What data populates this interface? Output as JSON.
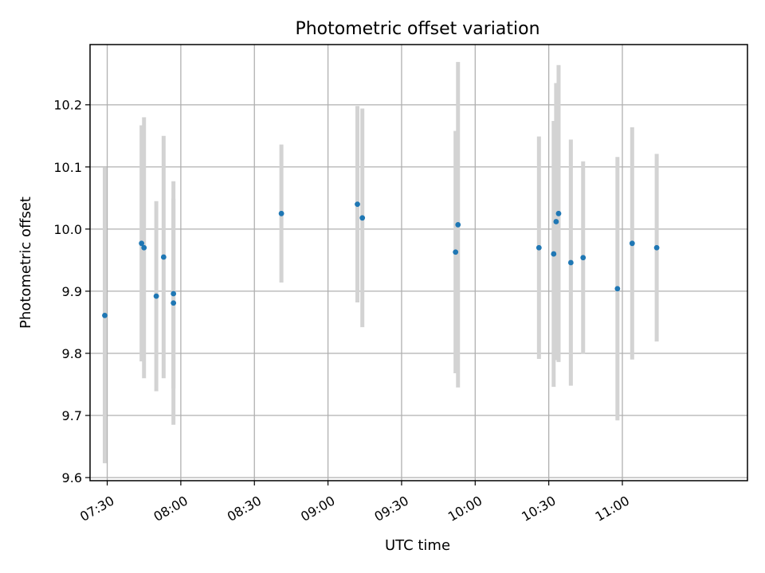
{
  "chart_data": {
    "type": "scatter",
    "title": "Photometric offset variation",
    "xlabel": "UTC time",
    "ylabel": "Photometric offset",
    "grid": true,
    "legend": "none",
    "x_is_time": true,
    "xlim": [
      "07:23",
      "11:51"
    ],
    "ylim": [
      9.595,
      10.297
    ],
    "x_ticks": [
      "07:30",
      "08:00",
      "08:30",
      "09:00",
      "09:30",
      "10:00",
      "10:30",
      "11:00"
    ],
    "y_ticks": [
      9.6,
      9.7,
      9.8,
      9.9,
      10.0,
      10.1,
      10.2
    ],
    "colors": {
      "marker": "#1f77b4",
      "errorbar": "#d3d3d3",
      "grid": "#b0b0b0"
    },
    "series": [
      {
        "points": [
          {
            "x": "07:29",
            "y": 9.861,
            "err": 0.238
          },
          {
            "x": "07:44",
            "y": 9.977,
            "err": 0.19
          },
          {
            "x": "07:45",
            "y": 9.97,
            "err": 0.21
          },
          {
            "x": "07:50",
            "y": 9.892,
            "err": 0.153
          },
          {
            "x": "07:53",
            "y": 9.955,
            "err": 0.195
          },
          {
            "x": "07:57",
            "y": 9.881,
            "err": 0.196
          },
          {
            "x": "07:57",
            "y": 9.896,
            "err": 0.153
          },
          {
            "x": "08:41",
            "y": 10.025,
            "err": 0.111
          },
          {
            "x": "09:12",
            "y": 10.04,
            "err": 0.158
          },
          {
            "x": "09:14",
            "y": 10.018,
            "err": 0.176
          },
          {
            "x": "09:52",
            "y": 9.963,
            "err": 0.195
          },
          {
            "x": "09:53",
            "y": 10.007,
            "err": 0.262
          },
          {
            "x": "10:26",
            "y": 9.97,
            "err": 0.179
          },
          {
            "x": "10:32",
            "y": 9.96,
            "err": 0.214
          },
          {
            "x": "10:33",
            "y": 10.012,
            "err": 0.223
          },
          {
            "x": "10:34",
            "y": 10.025,
            "err": 0.239
          },
          {
            "x": "10:39",
            "y": 9.946,
            "err": 0.198
          },
          {
            "x": "10:44",
            "y": 9.954,
            "err": 0.155
          },
          {
            "x": "10:58",
            "y": 9.904,
            "err": 0.212
          },
          {
            "x": "11:04",
            "y": 9.977,
            "err": 0.187
          },
          {
            "x": "11:14",
            "y": 9.97,
            "err": 0.151
          }
        ]
      }
    ]
  }
}
